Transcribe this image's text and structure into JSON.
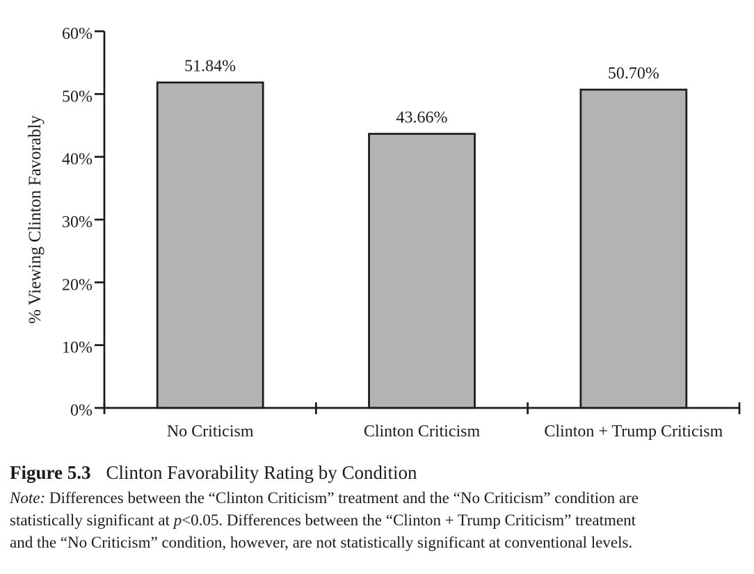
{
  "chart_data": {
    "type": "bar",
    "categories": [
      "No Criticism",
      "Clinton Criticism",
      "Clinton + Trump Criticism"
    ],
    "values": [
      51.84,
      43.66,
      50.7
    ],
    "value_labels": [
      "51.84%",
      "43.66%",
      "50.70%"
    ],
    "xlabel": "",
    "ylabel": "% Viewing Clinton Favorably",
    "ylim": [
      0,
      60
    ],
    "yticks": [
      0,
      10,
      20,
      30,
      40,
      50,
      60
    ],
    "ytick_labels": [
      "0%",
      "10%",
      "20%",
      "30%",
      "40%",
      "50%",
      "60%"
    ],
    "grid": false,
    "legend": "none",
    "bar_fill_color": "#b3b3b4",
    "axis_color": "#1c1c1c"
  },
  "caption": {
    "label": "Figure 5.3",
    "title": "Clinton Favorability Rating by Condition"
  },
  "note": {
    "line1_label": "Note:",
    "line1_text": " Differences between the “Clinton Criticism” treatment and the “No Criticism” condition are",
    "line2_text_a": "statistically significant at ",
    "line2_p": "p",
    "line2_text_b": "<0.05. Differences between the “Clinton + Trump Criticism” treatment",
    "line3_text": "and the “No Criticism” condition, however, are not statistically significant at conventional levels."
  }
}
